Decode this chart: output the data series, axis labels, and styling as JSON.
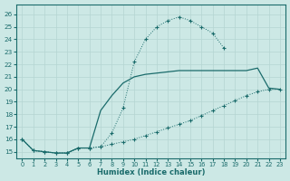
{
  "xlabel": "Humidex (Indice chaleur)",
  "bg_color": "#cce8e5",
  "line_color": "#1a6b6b",
  "grid_color": "#b5d5d2",
  "xlim_min": -0.5,
  "xlim_max": 23.5,
  "ylim_min": 14.5,
  "ylim_max": 26.8,
  "xticks": [
    0,
    1,
    2,
    3,
    4,
    5,
    6,
    7,
    8,
    9,
    10,
    11,
    12,
    13,
    14,
    15,
    16,
    17,
    18,
    19,
    20,
    21,
    22,
    23
  ],
  "yticks": [
    15,
    16,
    17,
    18,
    19,
    20,
    21,
    22,
    23,
    24,
    25,
    26
  ],
  "line1_x": [
    0,
    1,
    2,
    3,
    4,
    5,
    6,
    7,
    8,
    9,
    10,
    11,
    12,
    13,
    14,
    15,
    16,
    17,
    18
  ],
  "line1_y": [
    16.0,
    15.1,
    15.0,
    14.9,
    14.9,
    15.3,
    15.3,
    15.4,
    16.5,
    18.5,
    22.2,
    24.0,
    25.0,
    25.5,
    25.8,
    25.5,
    25.0,
    24.5,
    23.3
  ],
  "line2_x": [
    0,
    1,
    2,
    3,
    4,
    5,
    6,
    7,
    8,
    9,
    10,
    11,
    12,
    13,
    14,
    15,
    16,
    17,
    18,
    19,
    20,
    21,
    22,
    23
  ],
  "line2_y": [
    16.0,
    15.1,
    15.0,
    14.9,
    14.9,
    15.3,
    15.3,
    15.4,
    15.6,
    15.8,
    16.0,
    16.3,
    16.6,
    16.9,
    17.2,
    17.5,
    17.9,
    18.3,
    18.7,
    19.1,
    19.5,
    19.8,
    20.0,
    20.0
  ],
  "line3_x": [
    0,
    1,
    2,
    3,
    4,
    5,
    6,
    7,
    8,
    9,
    10,
    11,
    12,
    13,
    14,
    15,
    16,
    17,
    18,
    19,
    20,
    21,
    22,
    23
  ],
  "line3_y": [
    16.0,
    15.1,
    15.0,
    14.9,
    14.9,
    15.3,
    15.3,
    18.3,
    19.5,
    20.5,
    21.0,
    21.2,
    21.3,
    21.4,
    21.5,
    21.5,
    21.5,
    21.5,
    21.5,
    21.5,
    21.5,
    21.7,
    20.1,
    20.0
  ]
}
